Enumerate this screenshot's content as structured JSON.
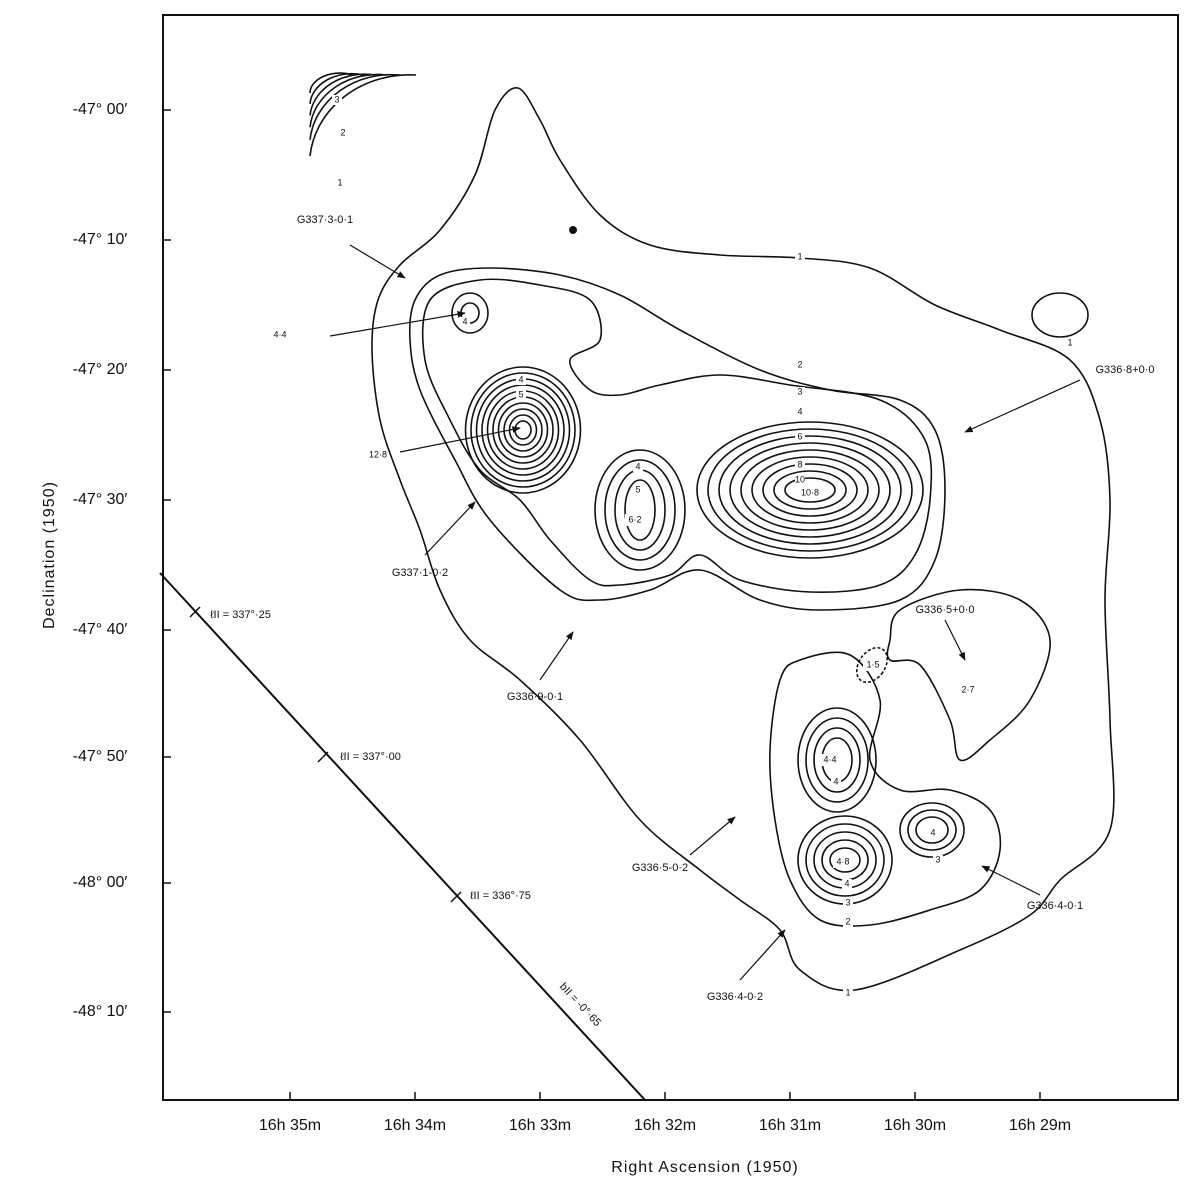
{
  "axes": {
    "x_label": "Right Ascension (1950)",
    "y_label": "Declination (1950)",
    "x_ticks": [
      "16h 35m",
      "16h 34m",
      "16h 33m",
      "16h 32m",
      "16h 31m",
      "16h 30m",
      "16h 29m"
    ],
    "y_ticks": [
      "-47° 00′",
      "-47° 10′",
      "-47° 20′",
      "-47° 30′",
      "-47° 40′",
      "-47° 50′",
      "-48° 00′",
      "-48° 10′"
    ]
  },
  "sources": [
    "G337·3-0·1",
    "G336·8+0·0",
    "G337·1-0·2",
    "G336·9-0·1",
    "G336·5+0·0",
    "G336·5-0·2",
    "G336·4-0·1",
    "G336·4-0·2"
  ],
  "peaks": [
    "4·4",
    "12·8",
    "6·2",
    "10·8",
    "2·7",
    "4·4",
    "4·8",
    "1·5"
  ],
  "contour_labels": [
    "1",
    "1",
    "1",
    "1",
    "2",
    "2",
    "2",
    "3",
    "3",
    "3",
    "3",
    "4",
    "4",
    "4",
    "4",
    "4",
    "4",
    "4",
    "5",
    "5",
    "6",
    "8",
    "10"
  ],
  "galactic": [
    "ℓII = 337°·25",
    "ℓII = 337°·00",
    "ℓII = 336°·75",
    "bII = -0°·65"
  ]
}
